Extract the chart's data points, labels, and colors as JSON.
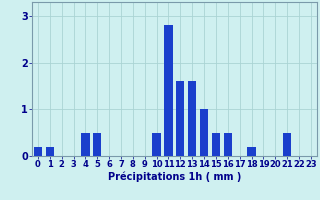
{
  "categories": [
    0,
    1,
    2,
    3,
    4,
    5,
    6,
    7,
    8,
    9,
    10,
    11,
    12,
    13,
    14,
    15,
    16,
    17,
    18,
    19,
    20,
    21,
    22,
    23
  ],
  "values": [
    0.2,
    0.2,
    0,
    0,
    0.5,
    0.5,
    0,
    0,
    0,
    0,
    0.5,
    2.8,
    1.6,
    1.6,
    1.0,
    0.5,
    0.5,
    0,
    0.2,
    0,
    0,
    0.5,
    0,
    0
  ],
  "bar_color": "#1a3fcc",
  "background_color": "#cff0f0",
  "grid_color": "#aad4d4",
  "xlabel": "Précipitations 1h ( mm )",
  "xlim": [
    -0.5,
    23.5
  ],
  "ylim": [
    0,
    3.3
  ],
  "yticks": [
    0,
    1,
    2,
    3
  ],
  "xlabel_fontsize": 7,
  "tick_fontsize": 6,
  "xlabel_color": "#00008b",
  "tick_color": "#00008b",
  "spine_color": "#7a9aaa"
}
